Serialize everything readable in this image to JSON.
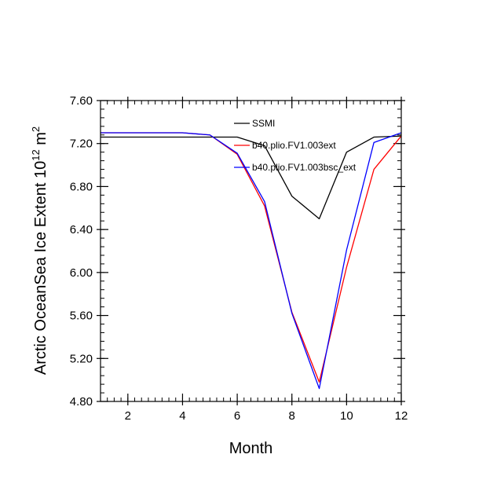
{
  "chart_data": {
    "type": "line",
    "title": "",
    "xlabel": "Month",
    "ylabel_main": "Arctic OceanSea Ice Extent 10",
    "ylabel_exp1": "12",
    "ylabel_unit": " m",
    "ylabel_exp2": "2",
    "xlim": [
      1,
      12
    ],
    "ylim": [
      4.8,
      7.6
    ],
    "x_ticks": [
      2,
      4,
      6,
      8,
      10,
      12
    ],
    "x_tick_labels": [
      "2",
      "4",
      "6",
      "8",
      "10",
      "12"
    ],
    "y_ticks": [
      4.8,
      5.2,
      5.6,
      6.0,
      6.4,
      6.8,
      7.2,
      7.6
    ],
    "y_tick_labels": [
      "4.80",
      "5.20",
      "5.60",
      "6.00",
      "6.40",
      "6.80",
      "7.20",
      "7.60"
    ],
    "legend_position": "top-right",
    "x": [
      1,
      2,
      3,
      4,
      5,
      6,
      7,
      8,
      9,
      10,
      11,
      12
    ],
    "series": [
      {
        "name": "SSMI",
        "color": "#000000",
        "values": [
          7.26,
          7.26,
          7.26,
          7.26,
          7.26,
          7.26,
          7.18,
          6.71,
          6.5,
          7.12,
          7.26,
          7.27
        ]
      },
      {
        "name": "b40.plio.FV1.003ext",
        "color": "#ff0000",
        "values": [
          7.3,
          7.3,
          7.3,
          7.3,
          7.28,
          7.1,
          6.62,
          5.63,
          4.98,
          6.05,
          6.96,
          7.27
        ]
      },
      {
        "name": "b40.plio.FV1.003bsc_ext",
        "color": "#0000ff",
        "values": [
          7.3,
          7.3,
          7.3,
          7.3,
          7.28,
          7.11,
          6.66,
          5.62,
          4.92,
          6.21,
          7.21,
          7.3
        ]
      }
    ]
  }
}
